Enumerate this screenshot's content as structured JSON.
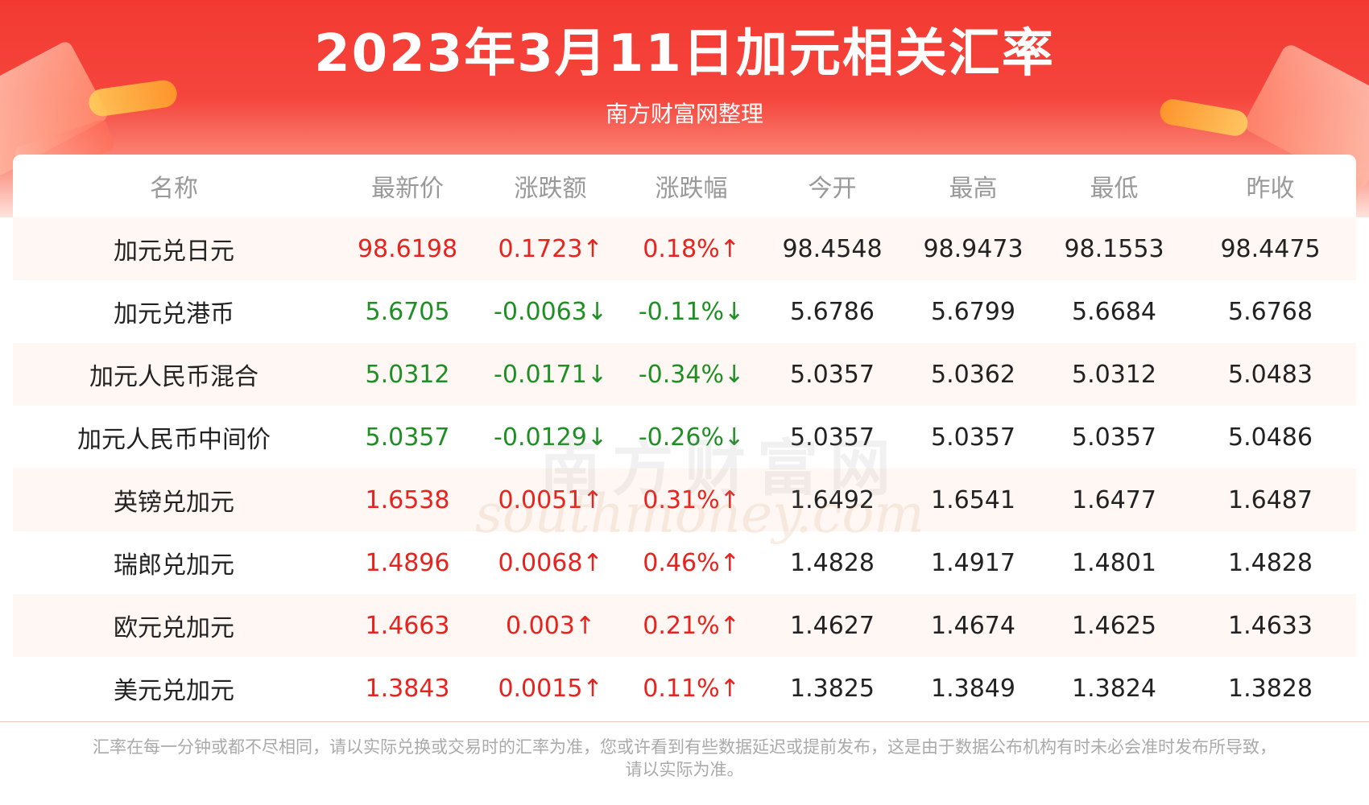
{
  "header": {
    "title": "2023年3月11日加元相关汇率",
    "subtitle": "南方财富网整理"
  },
  "watermark": {
    "cn": "南方财富网",
    "en": "southmoney.com"
  },
  "table": {
    "columns": [
      "名称",
      "最新价",
      "涨跌额",
      "涨跌幅",
      "今开",
      "最高",
      "最低",
      "昨收"
    ],
    "rows": [
      {
        "name": "加元兑日元",
        "latest": "98.6198",
        "change": "0.1723↑",
        "pct": "0.18%↑",
        "open": "98.4548",
        "high": "98.9473",
        "low": "98.1553",
        "prev": "98.4475",
        "trend": "up"
      },
      {
        "name": "加元兑港币",
        "latest": "5.6705",
        "change": "-0.0063↓",
        "pct": "-0.11%↓",
        "open": "5.6786",
        "high": "5.6799",
        "low": "5.6684",
        "prev": "5.6768",
        "trend": "down"
      },
      {
        "name": "加元人民币混合",
        "latest": "5.0312",
        "change": "-0.0171↓",
        "pct": "-0.34%↓",
        "open": "5.0357",
        "high": "5.0362",
        "low": "5.0312",
        "prev": "5.0483",
        "trend": "down"
      },
      {
        "name": "加元人民币中间价",
        "latest": "5.0357",
        "change": "-0.0129↓",
        "pct": "-0.26%↓",
        "open": "5.0357",
        "high": "5.0357",
        "low": "5.0357",
        "prev": "5.0486",
        "trend": "down"
      },
      {
        "name": "英镑兑加元",
        "latest": "1.6538",
        "change": "0.0051↑",
        "pct": "0.31%↑",
        "open": "1.6492",
        "high": "1.6541",
        "low": "1.6477",
        "prev": "1.6487",
        "trend": "up"
      },
      {
        "name": "瑞郎兑加元",
        "latest": "1.4896",
        "change": "0.0068↑",
        "pct": "0.46%↑",
        "open": "1.4828",
        "high": "1.4917",
        "low": "1.4801",
        "prev": "1.4828",
        "trend": "up"
      },
      {
        "name": "欧元兑加元",
        "latest": "1.4663",
        "change": "0.003↑",
        "pct": "0.21%↑",
        "open": "1.4627",
        "high": "1.4674",
        "low": "1.4625",
        "prev": "1.4633",
        "trend": "up"
      },
      {
        "name": "美元兑加元",
        "latest": "1.3843",
        "change": "0.0015↑",
        "pct": "0.11%↑",
        "open": "1.3825",
        "high": "1.3849",
        "low": "1.3824",
        "prev": "1.3828",
        "trend": "up"
      }
    ]
  },
  "colors": {
    "up": "#e8231e",
    "down": "#1f8f24",
    "banner": "#f23a32"
  },
  "footer": {
    "line1": "汇率在每一分钟或都不尽相同，请以实际兑换或交易时的汇率为准，您或许看到有些数据延迟或提前发布，这是由于数据公布机构有时未必会准时发布所导致，",
    "line2": "请以实际为准。"
  }
}
